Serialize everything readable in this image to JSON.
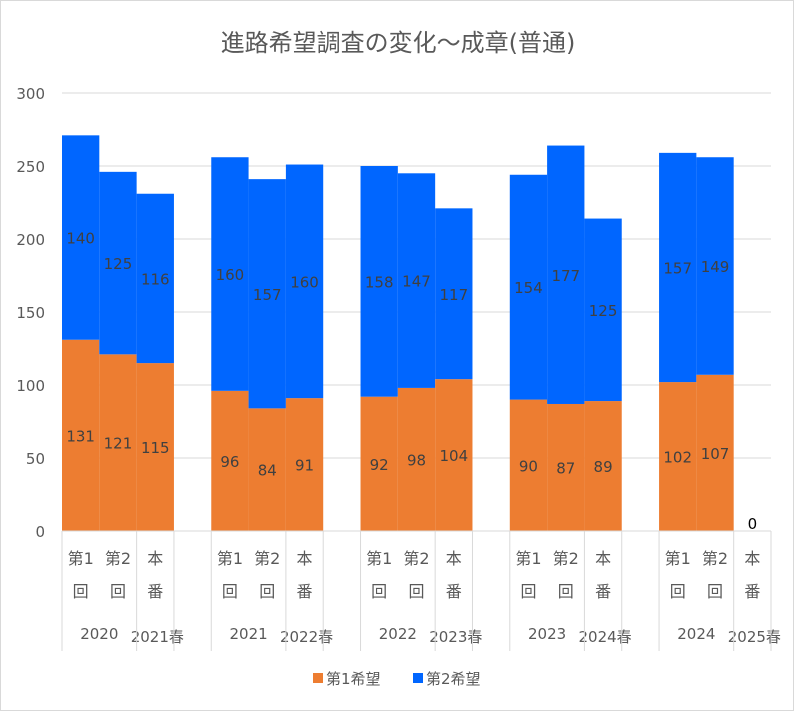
{
  "chart_data": {
    "type": "bar",
    "stacked": true,
    "title": "進路希望調査の変化～成章(普通)",
    "ylim": [
      0,
      300
    ],
    "yticks": [
      0,
      50,
      100,
      150,
      200,
      250,
      300
    ],
    "grid": true,
    "legend_position": "bottom",
    "groups": [
      {
        "year": "2020",
        "spring": "2021春",
        "sub": [
          "第1回",
          "第2回",
          "本番"
        ]
      },
      {
        "year": "2021",
        "spring": "2022春",
        "sub": [
          "第1回",
          "第2回",
          "本番"
        ]
      },
      {
        "year": "2022",
        "spring": "2023春",
        "sub": [
          "第1回",
          "第2回",
          "本番"
        ]
      },
      {
        "year": "2023",
        "spring": "2024春",
        "sub": [
          "第1回",
          "第2回",
          "本番"
        ]
      },
      {
        "year": "2024",
        "spring": "2025春",
        "sub": [
          "第1回",
          "第2回",
          "本番"
        ]
      }
    ],
    "sub_labels": [
      [
        "第1",
        "回"
      ],
      [
        "第2",
        "回"
      ],
      [
        "本",
        "番"
      ]
    ],
    "series": [
      {
        "name": "第1希望",
        "color": "#ED7D31",
        "values": [
          [
            131,
            121,
            115
          ],
          [
            96,
            84,
            91
          ],
          [
            92,
            98,
            104
          ],
          [
            90,
            87,
            89
          ],
          [
            102,
            107,
            0
          ]
        ]
      },
      {
        "name": "第2希望",
        "color": "#0066FF",
        "values": [
          [
            140,
            125,
            116
          ],
          [
            160,
            157,
            160
          ],
          [
            158,
            147,
            117
          ],
          [
            154,
            177,
            125
          ],
          [
            157,
            149,
            null
          ]
        ]
      }
    ]
  }
}
